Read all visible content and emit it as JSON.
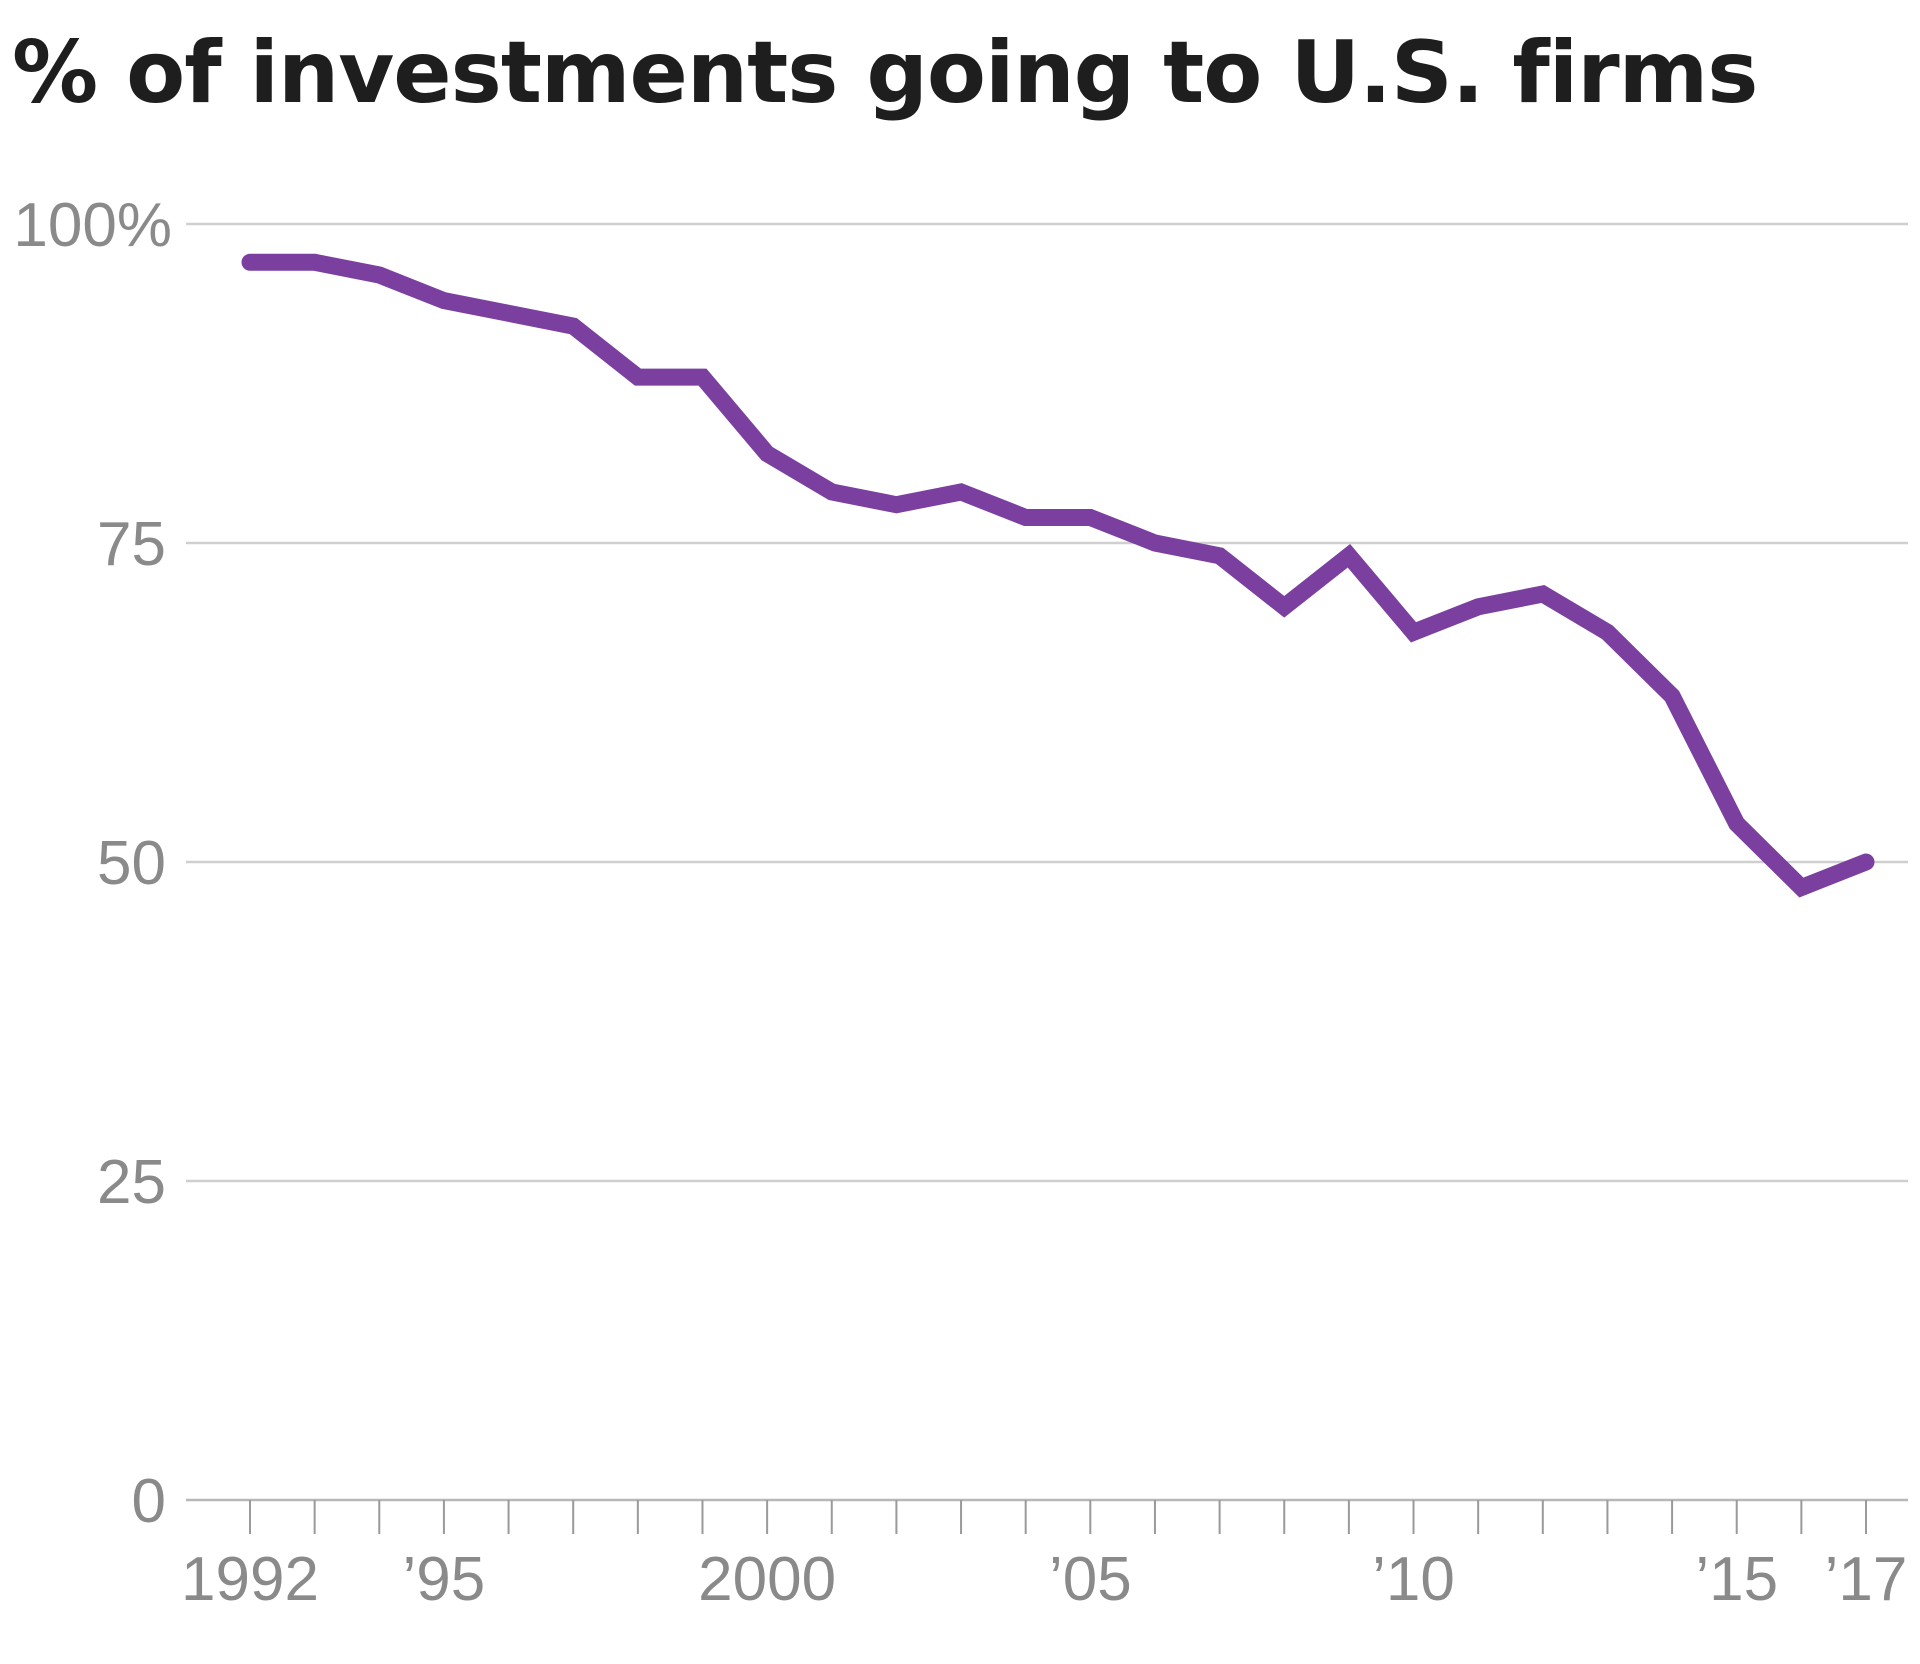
{
  "chart_data": {
    "type": "line",
    "title": "% of investments going to U.S. firms",
    "xlabel": "",
    "ylabel": "",
    "x": [
      1992,
      1993,
      1994,
      1995,
      1996,
      1997,
      1998,
      1999,
      2000,
      2001,
      2002,
      2003,
      2004,
      2005,
      2006,
      2007,
      2008,
      2009,
      2010,
      2011,
      2012,
      2013,
      2014,
      2015,
      2016,
      2017
    ],
    "series": [
      {
        "name": "% of investments going to U.S. firms",
        "color": "#7b3fa0",
        "values": [
          97,
          97,
          96,
          94,
          93,
          92,
          88,
          88,
          82,
          79,
          78,
          79,
          77,
          77,
          75,
          74,
          70,
          74,
          68,
          70,
          71,
          68,
          63,
          53,
          48,
          50
        ]
      }
    ],
    "ylim": [
      0,
      100
    ],
    "xlim": [
      1992,
      2017
    ],
    "yticks": [
      0,
      25,
      50,
      75,
      100
    ],
    "ytick_labels": [
      "0",
      "25",
      "50",
      "75",
      "100%"
    ],
    "xticks": [
      1992,
      1995,
      2000,
      2005,
      2010,
      2015,
      2017
    ],
    "xtick_labels": [
      "1992",
      "’95",
      "2000",
      "’05",
      "’10",
      "’15",
      "’17"
    ],
    "grid": true,
    "gridline_color": "#cfcfcf"
  }
}
